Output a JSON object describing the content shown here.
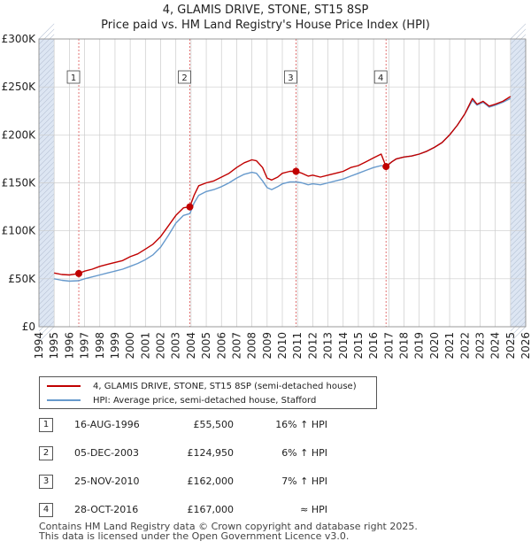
{
  "header": {
    "title": "4, GLAMIS DRIVE, STONE, ST15 8SP",
    "subtitle": "Price paid vs. HM Land Registry's House Price Index (HPI)"
  },
  "chart_data": {
    "type": "line",
    "title": "4, GLAMIS DRIVE, STONE, ST15 8SP",
    "subtitle": "Price paid vs. HM Land Registry's House Price Index (HPI)",
    "xlabel": "",
    "ylabel": "",
    "xlim": [
      1994,
      2026
    ],
    "ylim": [
      0,
      300000
    ],
    "x_ticks": [
      "1994",
      "1995",
      "1996",
      "1997",
      "1998",
      "1999",
      "2000",
      "2001",
      "2002",
      "2003",
      "2004",
      "2005",
      "2006",
      "2007",
      "2008",
      "2009",
      "2010",
      "2011",
      "2012",
      "2013",
      "2014",
      "2015",
      "2016",
      "2017",
      "2018",
      "2019",
      "2020",
      "2021",
      "2022",
      "2023",
      "2024",
      "2025",
      "2026"
    ],
    "y_ticks": [
      {
        "value": 0,
        "label": "£0"
      },
      {
        "value": 50000,
        "label": "£50K"
      },
      {
        "value": 100000,
        "label": "£100K"
      },
      {
        "value": 150000,
        "label": "£150K"
      },
      {
        "value": 200000,
        "label": "£200K"
      },
      {
        "value": 250000,
        "label": "£250K"
      },
      {
        "value": 300000,
        "label": "£300K"
      }
    ],
    "colors": {
      "property": "#c00000",
      "hpi": "#6699cc",
      "band": "#dde6f3",
      "vline": "#e06666",
      "grid": "#cccccc"
    },
    "series": [
      {
        "name": "4, GLAMIS DRIVE, STONE, ST15 8SP (semi-detached house)",
        "color": "#c00000",
        "points": [
          [
            1995.0,
            56000
          ],
          [
            1995.5,
            54500
          ],
          [
            1996.0,
            54000
          ],
          [
            1996.62,
            55500
          ],
          [
            1997.0,
            58000
          ],
          [
            1997.5,
            60000
          ],
          [
            1998.0,
            63000
          ],
          [
            1998.5,
            65000
          ],
          [
            1999.0,
            67000
          ],
          [
            1999.5,
            69000
          ],
          [
            2000.0,
            73000
          ],
          [
            2000.5,
            76000
          ],
          [
            2001.0,
            81000
          ],
          [
            2001.5,
            86000
          ],
          [
            2002.0,
            94000
          ],
          [
            2002.5,
            105000
          ],
          [
            2003.0,
            116000
          ],
          [
            2003.5,
            124000
          ],
          [
            2003.92,
            124950
          ],
          [
            2004.2,
            137000
          ],
          [
            2004.5,
            147000
          ],
          [
            2005.0,
            150000
          ],
          [
            2005.5,
            152000
          ],
          [
            2006.0,
            156000
          ],
          [
            2006.5,
            160000
          ],
          [
            2007.0,
            166000
          ],
          [
            2007.5,
            171000
          ],
          [
            2008.0,
            174000
          ],
          [
            2008.3,
            173000
          ],
          [
            2008.7,
            166000
          ],
          [
            2009.0,
            155000
          ],
          [
            2009.3,
            153000
          ],
          [
            2009.7,
            156000
          ],
          [
            2010.0,
            160000
          ],
          [
            2010.5,
            162000
          ],
          [
            2010.9,
            162000
          ],
          [
            2011.3,
            160000
          ],
          [
            2011.7,
            157000
          ],
          [
            2012.0,
            158000
          ],
          [
            2012.5,
            156000
          ],
          [
            2013.0,
            158000
          ],
          [
            2013.5,
            160000
          ],
          [
            2014.0,
            162000
          ],
          [
            2014.5,
            166000
          ],
          [
            2015.0,
            168000
          ],
          [
            2015.5,
            172000
          ],
          [
            2016.0,
            176000
          ],
          [
            2016.5,
            180000
          ],
          [
            2016.82,
            167000
          ],
          [
            2017.2,
            172000
          ],
          [
            2017.5,
            175000
          ],
          [
            2018.0,
            177000
          ],
          [
            2018.5,
            178000
          ],
          [
            2019.0,
            180000
          ],
          [
            2019.5,
            183000
          ],
          [
            2020.0,
            187000
          ],
          [
            2020.5,
            192000
          ],
          [
            2021.0,
            200000
          ],
          [
            2021.5,
            210000
          ],
          [
            2022.0,
            222000
          ],
          [
            2022.5,
            238000
          ],
          [
            2022.8,
            232000
          ],
          [
            2023.2,
            235000
          ],
          [
            2023.6,
            230000
          ],
          [
            2024.0,
            232000
          ],
          [
            2024.5,
            235000
          ],
          [
            2025.0,
            240000
          ]
        ]
      },
      {
        "name": "HPI: Average price, semi-detached house, Stafford",
        "color": "#6699cc",
        "points": [
          [
            1995.0,
            50000
          ],
          [
            1995.5,
            48500
          ],
          [
            1996.0,
            47500
          ],
          [
            1996.62,
            48000
          ],
          [
            1997.0,
            50000
          ],
          [
            1997.5,
            52000
          ],
          [
            1998.0,
            54000
          ],
          [
            1998.5,
            56000
          ],
          [
            1999.0,
            58000
          ],
          [
            1999.5,
            60000
          ],
          [
            2000.0,
            63000
          ],
          [
            2000.5,
            66000
          ],
          [
            2001.0,
            70000
          ],
          [
            2001.5,
            75000
          ],
          [
            2002.0,
            83000
          ],
          [
            2002.5,
            95000
          ],
          [
            2003.0,
            108000
          ],
          [
            2003.5,
            116000
          ],
          [
            2003.92,
            118000
          ],
          [
            2004.2,
            129000
          ],
          [
            2004.5,
            137000
          ],
          [
            2005.0,
            141000
          ],
          [
            2005.5,
            143000
          ],
          [
            2006.0,
            146000
          ],
          [
            2006.5,
            150000
          ],
          [
            2007.0,
            155000
          ],
          [
            2007.5,
            159000
          ],
          [
            2008.0,
            161000
          ],
          [
            2008.3,
            160000
          ],
          [
            2008.7,
            152000
          ],
          [
            2009.0,
            145000
          ],
          [
            2009.3,
            143000
          ],
          [
            2009.7,
            146000
          ],
          [
            2010.0,
            149000
          ],
          [
            2010.5,
            151000
          ],
          [
            2010.9,
            151000
          ],
          [
            2011.3,
            150000
          ],
          [
            2011.7,
            148000
          ],
          [
            2012.0,
            149000
          ],
          [
            2012.5,
            148000
          ],
          [
            2013.0,
            150000
          ],
          [
            2013.5,
            152000
          ],
          [
            2014.0,
            154000
          ],
          [
            2014.5,
            157000
          ],
          [
            2015.0,
            160000
          ],
          [
            2015.5,
            163000
          ],
          [
            2016.0,
            166000
          ],
          [
            2016.5,
            168000
          ],
          [
            2016.82,
            167000
          ],
          [
            2017.2,
            172000
          ],
          [
            2017.5,
            175000
          ],
          [
            2018.0,
            177000
          ],
          [
            2018.5,
            178000
          ],
          [
            2019.0,
            180000
          ],
          [
            2019.5,
            183000
          ],
          [
            2020.0,
            187000
          ],
          [
            2020.5,
            192000
          ],
          [
            2021.0,
            200000
          ],
          [
            2021.5,
            210000
          ],
          [
            2022.0,
            222000
          ],
          [
            2022.5,
            236000
          ],
          [
            2022.8,
            231000
          ],
          [
            2023.2,
            234000
          ],
          [
            2023.6,
            229000
          ],
          [
            2024.0,
            231000
          ],
          [
            2024.5,
            234000
          ],
          [
            2025.0,
            238000
          ]
        ]
      }
    ],
    "shaded_regions": [
      [
        1994,
        1995
      ],
      [
        2025,
        2026
      ]
    ],
    "sales": [
      {
        "label": "1",
        "x": 1996.62,
        "price": 55500
      },
      {
        "label": "2",
        "x": 2003.92,
        "price": 124950
      },
      {
        "label": "3",
        "x": 2010.9,
        "price": 162000
      },
      {
        "label": "4",
        "x": 2016.82,
        "price": 167000
      }
    ]
  },
  "legend": {
    "property_label": "4, GLAMIS DRIVE, STONE, ST15 8SP (semi-detached house)",
    "hpi_label": "HPI: Average price, semi-detached house, Stafford"
  },
  "sales_table": [
    {
      "num": "1",
      "date": "16-AUG-1996",
      "price": "£55,500",
      "hpi": "16% ↑ HPI"
    },
    {
      "num": "2",
      "date": "05-DEC-2003",
      "price": "£124,950",
      "hpi": "6% ↑ HPI"
    },
    {
      "num": "3",
      "date": "25-NOV-2010",
      "price": "£162,000",
      "hpi": "7% ↑ HPI"
    },
    {
      "num": "4",
      "date": "28-OCT-2016",
      "price": "£167,000",
      "hpi": "≈ HPI"
    }
  ],
  "footer": {
    "line1": "Contains HM Land Registry data © Crown copyright and database right 2025.",
    "line2": "This data is licensed under the Open Government Licence v3.0."
  }
}
